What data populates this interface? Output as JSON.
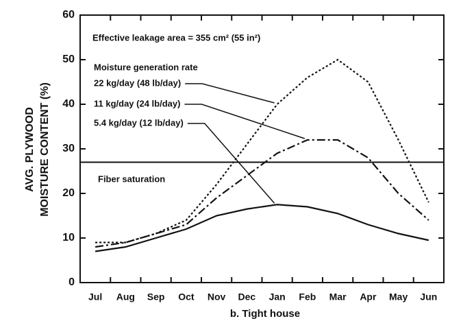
{
  "chart_data": {
    "type": "line",
    "ylabel": [
      "AVG. PLYWOOD",
      "MOISTURE CONTENT (%)"
    ],
    "xlabel": "b. Tight house",
    "annotation": "Effective leakage area = 355 cm² (55 in²)",
    "legend_title": "Moisture generation rate",
    "categories": [
      "Jul",
      "Aug",
      "Sep",
      "Oct",
      "Nov",
      "Dec",
      "Jan",
      "Feb",
      "Mar",
      "Apr",
      "May",
      "Jun"
    ],
    "series": [
      {
        "name": "22 kg/day (48 lb/day)",
        "color": "#111111",
        "dash": "3,3",
        "values": [
          9,
          9,
          11,
          14,
          22,
          31,
          40,
          46,
          50,
          45,
          32,
          18
        ]
      },
      {
        "name": "11 kg/day (24 lb/day)",
        "color": "#111111",
        "dash": "12,4,3,4",
        "values": [
          8,
          9,
          11,
          13,
          19,
          24,
          29,
          32,
          32,
          28,
          20,
          14
        ]
      },
      {
        "name": "5.4 kg/day (12 lb/day)",
        "color": "#111111",
        "dash": "none",
        "values": [
          7,
          8,
          10,
          12,
          15,
          16.5,
          17.5,
          17,
          15.5,
          13,
          11,
          9.5
        ]
      }
    ],
    "reference_line": {
      "label": "Fiber saturation",
      "value": 27
    },
    "ylim": [
      0,
      60
    ],
    "yticks": [
      0,
      10,
      20,
      30,
      40,
      50,
      60
    ]
  }
}
